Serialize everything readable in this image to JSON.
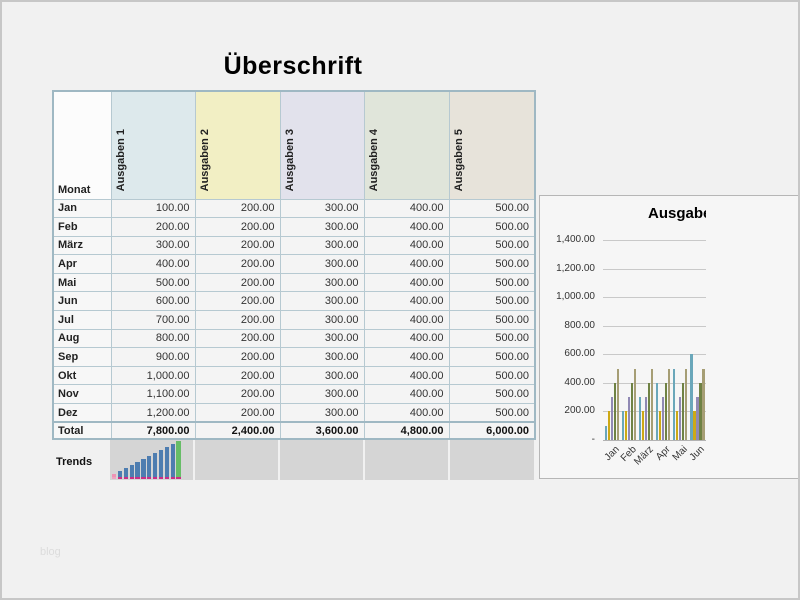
{
  "page": {
    "title": "Überschrift",
    "watermark": "blog"
  },
  "table": {
    "month_header": "Monat",
    "columns": [
      {
        "label": "Ausgaben 1",
        "color": "#dde9ec"
      },
      {
        "label": "Ausgaben 2",
        "color": "#f2efc4"
      },
      {
        "label": "Ausgaben 3",
        "color": "#e2e2ec"
      },
      {
        "label": "Ausgaben 4",
        "color": "#e0e5da"
      },
      {
        "label": "Ausgaben 5",
        "color": "#e7e3da"
      }
    ],
    "rows": [
      {
        "month": "Jan",
        "values": [
          "100.00",
          "200.00",
          "300.00",
          "400.00",
          "500.00"
        ]
      },
      {
        "month": "Feb",
        "values": [
          "200.00",
          "200.00",
          "300.00",
          "400.00",
          "500.00"
        ]
      },
      {
        "month": "März",
        "values": [
          "300.00",
          "200.00",
          "300.00",
          "400.00",
          "500.00"
        ]
      },
      {
        "month": "Apr",
        "values": [
          "400.00",
          "200.00",
          "300.00",
          "400.00",
          "500.00"
        ]
      },
      {
        "month": "Mai",
        "values": [
          "500.00",
          "200.00",
          "300.00",
          "400.00",
          "500.00"
        ]
      },
      {
        "month": "Jun",
        "values": [
          "600.00",
          "200.00",
          "300.00",
          "400.00",
          "500.00"
        ]
      },
      {
        "month": "Jul",
        "values": [
          "700.00",
          "200.00",
          "300.00",
          "400.00",
          "500.00"
        ]
      },
      {
        "month": "Aug",
        "values": [
          "800.00",
          "200.00",
          "300.00",
          "400.00",
          "500.00"
        ]
      },
      {
        "month": "Sep",
        "values": [
          "900.00",
          "200.00",
          "300.00",
          "400.00",
          "500.00"
        ]
      },
      {
        "month": "Okt",
        "values": [
          "1,000.00",
          "200.00",
          "300.00",
          "400.00",
          "500.00"
        ]
      },
      {
        "month": "Nov",
        "values": [
          "1,100.00",
          "200.00",
          "300.00",
          "400.00",
          "500.00"
        ]
      },
      {
        "month": "Dez",
        "values": [
          "1,200.00",
          "200.00",
          "300.00",
          "400.00",
          "500.00"
        ]
      }
    ],
    "total_label": "Total",
    "totals": [
      "7,800.00",
      "2,400.00",
      "3,600.00",
      "4,800.00",
      "6,000.00"
    ],
    "trends_label": "Trends"
  },
  "chart_data": [
    {
      "type": "bar",
      "title": "Ausgaben",
      "categories": [
        "Jan",
        "Feb",
        "März",
        "Apr",
        "Mai",
        "Jun"
      ],
      "series": [
        {
          "name": "Ausgaben 1",
          "color": "#6aa7ba",
          "values": [
            100,
            200,
            300,
            400,
            500,
            600
          ]
        },
        {
          "name": "Ausgaben 2",
          "color": "#cda915",
          "values": [
            200,
            200,
            200,
            200,
            200,
            200
          ]
        },
        {
          "name": "Ausgaben 3",
          "color": "#9089b4",
          "values": [
            300,
            300,
            300,
            300,
            300,
            300
          ]
        },
        {
          "name": "Ausgaben 4",
          "color": "#6f8244",
          "values": [
            400,
            400,
            400,
            400,
            400,
            400
          ]
        },
        {
          "name": "Ausgaben 5",
          "color": "#a69e75",
          "values": [
            500,
            500,
            500,
            500,
            500,
            500
          ]
        }
      ],
      "ylim": [
        0,
        1400
      ],
      "yticks": [
        0,
        200,
        400,
        600,
        800,
        1000,
        1200,
        1400
      ],
      "ytick_labels": [
        "-",
        "200.00",
        "400.00",
        "600.00",
        "800.00",
        "1,000.00",
        "1,200.00",
        "1,400.00"
      ],
      "grid": true,
      "legend": "none"
    },
    {
      "type": "bar",
      "subtype": "sparkline",
      "title": "Trends Ausgaben 1",
      "categories": [
        "Jan",
        "Feb",
        "März",
        "Apr",
        "Mai",
        "Jun",
        "Jul",
        "Aug",
        "Sep",
        "Okt",
        "Nov",
        "Dez"
      ],
      "values": [
        100,
        200,
        300,
        400,
        500,
        600,
        700,
        800,
        900,
        1000,
        1100,
        1200
      ],
      "colors": {
        "bar": "#4e7db0",
        "first_low": "#ee93b4",
        "last_high": "#67bd67",
        "marker": "#cb2e86",
        "first_marker": "#f0a3c0",
        "cell_bg": "#d5d5d5"
      }
    }
  ]
}
